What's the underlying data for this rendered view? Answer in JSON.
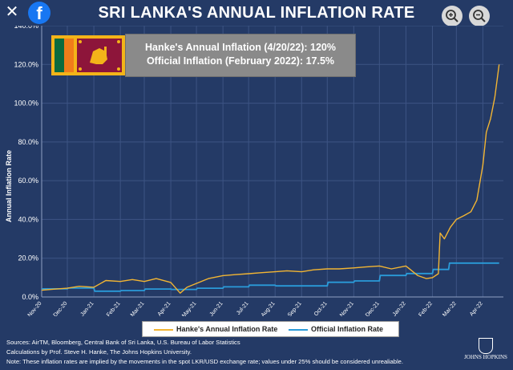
{
  "header": {
    "close_label": "✕",
    "facebook_label": "f",
    "title": "SRI LANKA'S ANNUAL INFLATION RATE",
    "zoom_in_icon": "zoom-in-icon",
    "zoom_out_icon": "zoom-out-icon"
  },
  "infobox": {
    "line1": "Hanke's Annual Inflation (4/20/22): 120%",
    "line2": "Official Inflation (February 2022): 17.5%"
  },
  "colors": {
    "hanke": "#f2b533",
    "official": "#2a9bd9",
    "background": "#243a66",
    "grid": "#3d5484"
  },
  "chart_data": {
    "type": "line",
    "ylabel": "Annual Inflation Rate",
    "ylim": [
      0,
      140
    ],
    "y_ticks": [
      "0.0%",
      "20.0%",
      "40.0%",
      "60.0%",
      "80.0%",
      "100.0%",
      "120.0%",
      "140.0%"
    ],
    "x_ticks": [
      "Nov-20",
      "Dec-20",
      "Jan-21",
      "Feb-21",
      "Mar-21",
      "Apr-21",
      "May-21",
      "Jun-21",
      "Jul-21",
      "Aug-21",
      "Sep-21",
      "Oct-21",
      "Nov-21",
      "Dec-21",
      "Jan-22",
      "Feb-22",
      "Mar-22",
      "Apr-22"
    ],
    "xlim": [
      "2020-11-01",
      "2022-04-25"
    ],
    "grid": true,
    "legend_position": "bottom",
    "series": [
      {
        "name": "Hanke's Annual Inflation Rate",
        "color": "#f2b533",
        "points": [
          [
            "2020-11-01",
            3.5
          ],
          [
            "2020-11-15",
            4.0
          ],
          [
            "2020-12-01",
            4.5
          ],
          [
            "2020-12-15",
            5.5
          ],
          [
            "2021-01-01",
            5.0
          ],
          [
            "2021-01-15",
            8.5
          ],
          [
            "2021-02-01",
            8.0
          ],
          [
            "2021-02-15",
            9.0
          ],
          [
            "2021-03-01",
            8.0
          ],
          [
            "2021-03-15",
            9.5
          ],
          [
            "2021-04-01",
            7.5
          ],
          [
            "2021-04-12",
            2.0
          ],
          [
            "2021-04-20",
            5.0
          ],
          [
            "2021-05-01",
            7.0
          ],
          [
            "2021-05-15",
            9.5
          ],
          [
            "2021-06-01",
            11.0
          ],
          [
            "2021-06-15",
            11.5
          ],
          [
            "2021-07-01",
            12.0
          ],
          [
            "2021-07-15",
            12.5
          ],
          [
            "2021-08-01",
            13.0
          ],
          [
            "2021-08-15",
            13.5
          ],
          [
            "2021-09-01",
            13.0
          ],
          [
            "2021-09-15",
            14.0
          ],
          [
            "2021-10-01",
            14.5
          ],
          [
            "2021-10-15",
            14.5
          ],
          [
            "2021-11-01",
            15.0
          ],
          [
            "2021-11-15",
            15.5
          ],
          [
            "2021-12-01",
            16.0
          ],
          [
            "2021-12-15",
            14.5
          ],
          [
            "2022-01-01",
            16.0
          ],
          [
            "2022-01-15",
            11.0
          ],
          [
            "2022-01-25",
            9.5
          ],
          [
            "2022-02-01",
            10.0
          ],
          [
            "2022-02-08",
            12.0
          ],
          [
            "2022-02-10",
            33.0
          ],
          [
            "2022-02-15",
            30.0
          ],
          [
            "2022-02-22",
            36.0
          ],
          [
            "2022-03-01",
            40.0
          ],
          [
            "2022-03-10",
            42.0
          ],
          [
            "2022-03-18",
            44.0
          ],
          [
            "2022-03-25",
            50.0
          ],
          [
            "2022-04-01",
            68.0
          ],
          [
            "2022-04-05",
            85.0
          ],
          [
            "2022-04-10",
            92.0
          ],
          [
            "2022-04-15",
            103.0
          ],
          [
            "2022-04-20",
            120.0
          ]
        ]
      },
      {
        "name": "Official Inflation Rate",
        "color": "#2a9bd9",
        "points": [
          [
            "2020-11-01",
            4.2
          ],
          [
            "2020-12-01",
            4.2
          ],
          [
            "2020-12-02",
            4.6
          ],
          [
            "2021-01-01",
            4.6
          ],
          [
            "2021-01-02",
            3.0
          ],
          [
            "2021-02-01",
            3.0
          ],
          [
            "2021-02-02",
            3.3
          ],
          [
            "2021-03-01",
            3.3
          ],
          [
            "2021-03-02",
            4.1
          ],
          [
            "2021-04-01",
            4.1
          ],
          [
            "2021-04-02",
            3.9
          ],
          [
            "2021-05-01",
            3.9
          ],
          [
            "2021-05-02",
            4.5
          ],
          [
            "2021-06-01",
            4.5
          ],
          [
            "2021-06-02",
            5.2
          ],
          [
            "2021-07-01",
            5.2
          ],
          [
            "2021-07-02",
            6.1
          ],
          [
            "2021-08-01",
            6.1
          ],
          [
            "2021-08-02",
            5.7
          ],
          [
            "2021-09-01",
            5.7
          ],
          [
            "2021-09-02",
            5.7
          ],
          [
            "2021-10-01",
            5.7
          ],
          [
            "2021-10-02",
            7.6
          ],
          [
            "2021-11-01",
            7.6
          ],
          [
            "2021-11-02",
            8.3
          ],
          [
            "2021-12-01",
            8.3
          ],
          [
            "2021-12-02",
            11.1
          ],
          [
            "2022-01-01",
            11.1
          ],
          [
            "2022-01-02",
            12.1
          ],
          [
            "2022-02-01",
            12.1
          ],
          [
            "2022-02-02",
            14.2
          ],
          [
            "2022-02-20",
            14.2
          ],
          [
            "2022-02-21",
            17.5
          ],
          [
            "2022-04-20",
            17.5
          ]
        ]
      }
    ]
  },
  "legend": {
    "hanke": "Hanke's Annual Inflation Rate",
    "official": "Official Inflation Rate"
  },
  "footer": {
    "line1": "Sources: AirTM, Bloomberg, Central Bank of Sri Lanka, U.S. Bureau of Labor Statistics",
    "line2": "Calculations by Prof. Steve H. Hanke, The Johns Hopkins University.",
    "line3": "Note: These inflation rates are implied by the movements in the spot LKR/USD exchange rate; values under 25% should be considered unrealiable.",
    "logo_text": "JOHNS HOPKINS"
  }
}
